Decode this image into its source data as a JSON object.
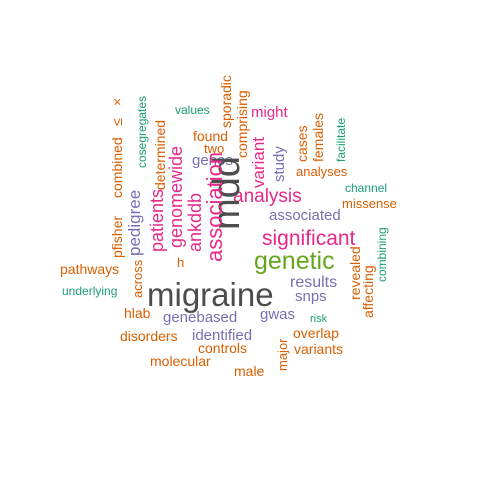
{
  "palette": {
    "gray": "#4d4d4d",
    "green": "#66a61e",
    "magenta": "#e7298a",
    "purple": "#7570b3",
    "orange": "#d95f02",
    "teal": "#1b9e77"
  },
  "words": [
    {
      "text": "migraine",
      "color": "gray",
      "weight": 10
    },
    {
      "text": "mdd",
      "color": "gray",
      "weight": 10
    },
    {
      "text": "genetic",
      "color": "green",
      "weight": 8
    },
    {
      "text": "significant",
      "color": "magenta",
      "weight": 7
    },
    {
      "text": "analysis",
      "color": "magenta",
      "weight": 7
    },
    {
      "text": "association",
      "color": "magenta",
      "weight": 6
    },
    {
      "text": "ankddb",
      "color": "magenta",
      "weight": 6
    },
    {
      "text": "genomewide",
      "color": "magenta",
      "weight": 6
    },
    {
      "text": "patients",
      "color": "magenta",
      "weight": 6
    },
    {
      "text": "variant",
      "color": "magenta",
      "weight": 5
    },
    {
      "text": "might",
      "color": "magenta",
      "weight": 5
    },
    {
      "text": "associated",
      "color": "purple",
      "weight": 4
    },
    {
      "text": "results",
      "color": "purple",
      "weight": 4
    },
    {
      "text": "snps",
      "color": "purple",
      "weight": 4
    },
    {
      "text": "gwas",
      "color": "purple",
      "weight": 4
    },
    {
      "text": "genebased",
      "color": "purple",
      "weight": 4
    },
    {
      "text": "identified",
      "color": "purple",
      "weight": 4
    },
    {
      "text": "genes",
      "color": "purple",
      "weight": 4
    },
    {
      "text": "pedigree",
      "color": "purple",
      "weight": 4
    },
    {
      "text": "study",
      "color": "purple",
      "weight": 4
    },
    {
      "text": "found",
      "color": "orange",
      "weight": 3
    },
    {
      "text": "two",
      "color": "orange",
      "weight": 3
    },
    {
      "text": "sporadic",
      "color": "orange",
      "weight": 3
    },
    {
      "text": "comprising",
      "color": "orange",
      "weight": 3
    },
    {
      "text": "cases",
      "color": "orange",
      "weight": 3
    },
    {
      "text": "females",
      "color": "orange",
      "weight": 3
    },
    {
      "text": "analyses",
      "color": "orange",
      "weight": 3
    },
    {
      "text": "missense",
      "color": "orange",
      "weight": 3
    },
    {
      "text": "revealed",
      "color": "orange",
      "weight": 3
    },
    {
      "text": "affecting",
      "color": "orange",
      "weight": 3
    },
    {
      "text": "overlap",
      "color": "orange",
      "weight": 3
    },
    {
      "text": "variants",
      "color": "orange",
      "weight": 3
    },
    {
      "text": "major",
      "color": "orange",
      "weight": 3
    },
    {
      "text": "male",
      "color": "orange",
      "weight": 3
    },
    {
      "text": "molecular",
      "color": "orange",
      "weight": 3
    },
    {
      "text": "controls",
      "color": "orange",
      "weight": 3
    },
    {
      "text": "disorders",
      "color": "orange",
      "weight": 3
    },
    {
      "text": "hlab",
      "color": "orange",
      "weight": 3
    },
    {
      "text": "pathways",
      "color": "orange",
      "weight": 3
    },
    {
      "text": "h",
      "color": "orange",
      "weight": 3
    },
    {
      "text": "across",
      "color": "orange",
      "weight": 3
    },
    {
      "text": "determined",
      "color": "orange",
      "weight": 3
    },
    {
      "text": "pfisher",
      "color": "orange",
      "weight": 3
    },
    {
      "text": "combined",
      "color": "orange",
      "weight": 3
    },
    {
      "text": "≤",
      "color": "orange",
      "weight": 3
    },
    {
      "text": "×",
      "color": "orange",
      "weight": 3
    },
    {
      "text": "values",
      "color": "teal",
      "weight": 2
    },
    {
      "text": "cosegregates",
      "color": "teal",
      "weight": 2
    },
    {
      "text": "facilitate",
      "color": "teal",
      "weight": 2
    },
    {
      "text": "channel",
      "color": "teal",
      "weight": 2
    },
    {
      "text": "combining",
      "color": "teal",
      "weight": 2
    },
    {
      "text": "underlying",
      "color": "teal",
      "weight": 2
    },
    {
      "text": "risk",
      "color": "teal",
      "weight": 2
    }
  ]
}
